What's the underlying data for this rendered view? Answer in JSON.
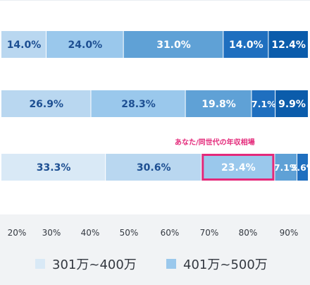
{
  "colors": {
    "seg_lightest": "#d9e9f6",
    "seg_light": "#b9d7f0",
    "seg_mid_light": "#9ac8ec",
    "seg_mid": "#5fa1d6",
    "seg_dark": "#1f6fbf",
    "seg_darkest": "#0b5cab",
    "label_dark_text": "#1d4f92",
    "label_light_text": "#ffffff",
    "highlight": "#e4297a",
    "axis_text": "#333840"
  },
  "callout": {
    "text": "あなた/同世代の年収相場"
  },
  "chart_data": {
    "type": "bar",
    "orientation": "horizontal",
    "stacked": true,
    "rows": [
      {
        "segments": [
          {
            "value": 14.0,
            "label": "14.0%"
          },
          {
            "value": 24.0,
            "label": "24.0%"
          },
          {
            "value": 31.0,
            "label": "31.0%"
          },
          {
            "value": 14.0,
            "label": "14.0%"
          },
          {
            "value": 12.4,
            "label": "12.4%"
          }
        ]
      },
      {
        "segments": [
          {
            "value": 26.9,
            "label": "26.9%"
          },
          {
            "value": 28.3,
            "label": "28.3%"
          },
          {
            "value": 19.8,
            "label": "19.8%"
          },
          {
            "value": 7.1,
            "label": "7.1%"
          },
          {
            "value": 9.9,
            "label": "9.9%"
          }
        ]
      },
      {
        "segments": [
          {
            "value": 33.3,
            "label": "33.3%"
          },
          {
            "value": 30.6,
            "label": "30.6%"
          },
          {
            "value": 23.4,
            "label": "23.4%",
            "highlighted": true
          },
          {
            "value": 7.1,
            "label": "7.1%"
          },
          {
            "value": 3.6,
            "label": "3.6%"
          }
        ]
      }
    ],
    "x_ticks": [
      "20%",
      "30%",
      "40%",
      "50%",
      "60%",
      "70%",
      "80%",
      "90%"
    ],
    "legend": [
      {
        "name": "301万~400万",
        "color": "#d9e9f6"
      },
      {
        "name": "401万~500万",
        "color": "#9ac8ec"
      }
    ],
    "legend_position": "bottom"
  }
}
